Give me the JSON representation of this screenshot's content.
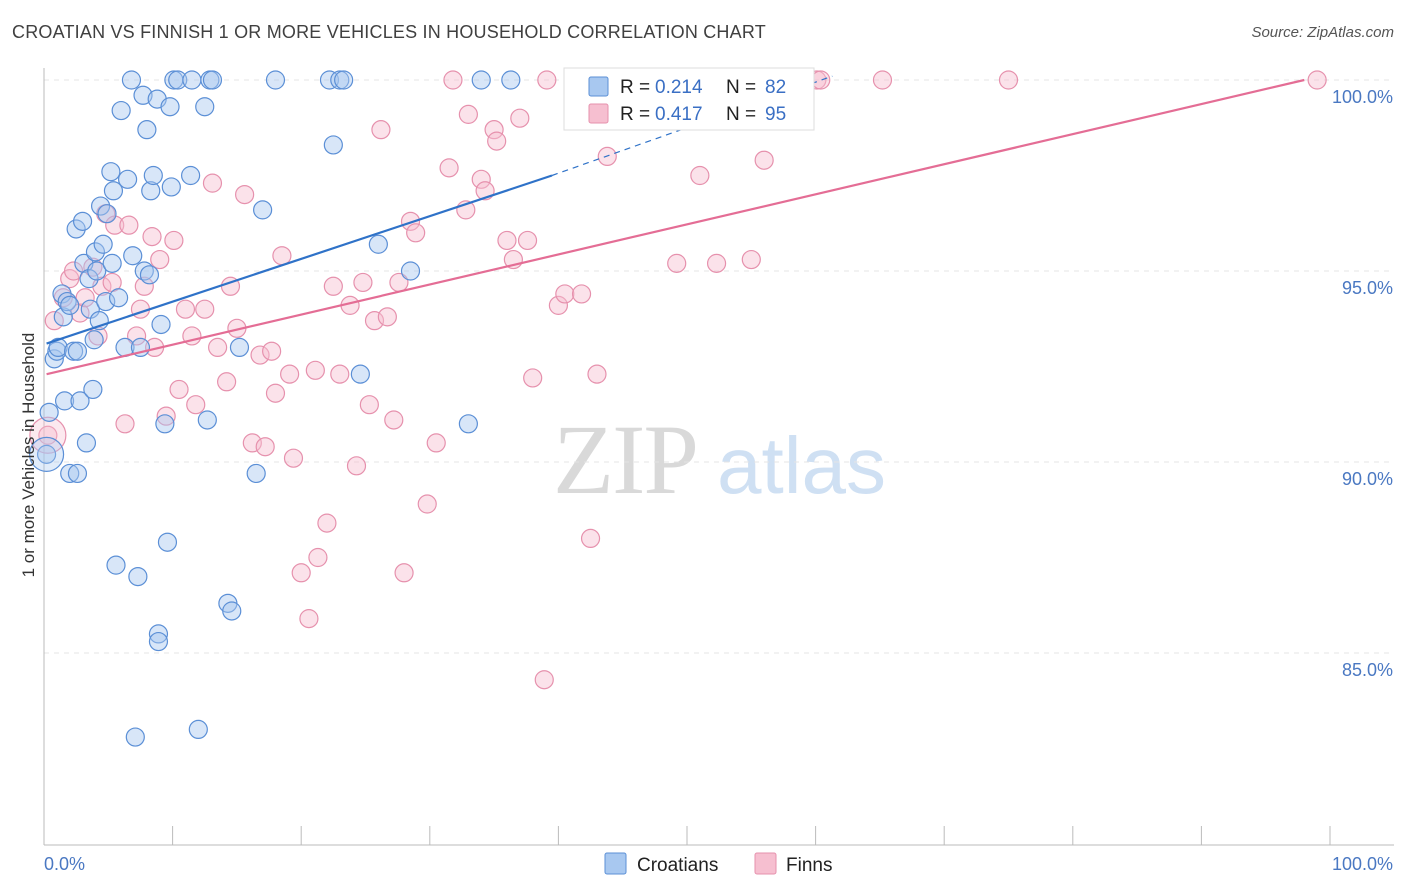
{
  "title": "CROATIAN VS FINNISH 1 OR MORE VEHICLES IN HOUSEHOLD CORRELATION CHART",
  "source": "Source: ZipAtlas.com",
  "watermark": {
    "zip": "ZIP",
    "atlas": "atlas"
  },
  "legend_top": [
    {
      "r_label": "R =",
      "r_value": "0.214",
      "n_label": "N =",
      "n_value": "82"
    },
    {
      "r_label": "R =",
      "r_value": "0.417",
      "n_label": "N =",
      "n_value": "95"
    }
  ],
  "legend_bottom": [
    "Croatians",
    "Finns"
  ],
  "colors": {
    "croatian_fill": "#a8c8f0",
    "croatian_stroke": "#5b8fd6",
    "croatian_line": "#2f72c8",
    "finn_fill": "#f6bfd0",
    "finn_stroke": "#e691ad",
    "finn_line": "#e46d95",
    "tick_text": "#4a78c2",
    "grid": "#e4e4e4"
  },
  "chart_data": {
    "type": "scatter",
    "title": "CROATIAN VS FINNISH 1 OR MORE VEHICLES IN HOUSEHOLD CORRELATION CHART",
    "xlabel": "",
    "ylabel": "1 or more Vehicles in Household",
    "xlim": [
      0,
      100
    ],
    "ylim": [
      80,
      101
    ],
    "x_tick_labels": [
      "0.0%",
      "100.0%"
    ],
    "y_ticks": [
      85,
      90,
      95,
      100
    ],
    "y_tick_labels": [
      "85.0%",
      "90.0%",
      "95.0%",
      "100.0%"
    ],
    "series": [
      {
        "name": "Croatians",
        "R": 0.214,
        "N": 82,
        "trend": {
          "x0": 0.2,
          "y0": 93.1,
          "x1": 39.5,
          "y1": 97.5,
          "dash_to_x": 61.3,
          "dash_to_y": 100.1
        },
        "points": [
          [
            0.2,
            90.2
          ],
          [
            0.4,
            91.3
          ],
          [
            0.8,
            92.7
          ],
          [
            1.0,
            92.9
          ],
          [
            1.1,
            93.0
          ],
          [
            1.4,
            94.4
          ],
          [
            1.5,
            93.8
          ],
          [
            1.6,
            91.6
          ],
          [
            1.8,
            94.2
          ],
          [
            2.0,
            94.1
          ],
          [
            2.0,
            89.7
          ],
          [
            2.3,
            92.9
          ],
          [
            2.5,
            96.1
          ],
          [
            2.6,
            89.7
          ],
          [
            2.6,
            92.9
          ],
          [
            2.8,
            91.6
          ],
          [
            3.0,
            96.3
          ],
          [
            3.1,
            95.2
          ],
          [
            3.3,
            90.5
          ],
          [
            3.5,
            94.8
          ],
          [
            3.6,
            94.0
          ],
          [
            3.8,
            91.9
          ],
          [
            3.9,
            93.2
          ],
          [
            4.0,
            95.5
          ],
          [
            4.1,
            95.0
          ],
          [
            4.3,
            93.7
          ],
          [
            4.4,
            96.7
          ],
          [
            4.6,
            95.7
          ],
          [
            4.8,
            94.2
          ],
          [
            4.9,
            96.5
          ],
          [
            5.2,
            97.6
          ],
          [
            5.3,
            95.2
          ],
          [
            5.4,
            97.1
          ],
          [
            5.6,
            87.3
          ],
          [
            5.8,
            94.3
          ],
          [
            6.0,
            99.2
          ],
          [
            6.3,
            93.0
          ],
          [
            6.5,
            97.4
          ],
          [
            6.8,
            100.0
          ],
          [
            6.9,
            95.4
          ],
          [
            7.1,
            82.8
          ],
          [
            7.3,
            87.0
          ],
          [
            7.5,
            93.0
          ],
          [
            7.7,
            99.6
          ],
          [
            7.8,
            95.0
          ],
          [
            8.0,
            98.7
          ],
          [
            8.2,
            94.9
          ],
          [
            8.3,
            97.1
          ],
          [
            8.5,
            97.5
          ],
          [
            8.8,
            99.5
          ],
          [
            8.9,
            85.5
          ],
          [
            8.9,
            85.3
          ],
          [
            9.1,
            93.6
          ],
          [
            9.4,
            91.0
          ],
          [
            9.6,
            87.9
          ],
          [
            9.8,
            99.3
          ],
          [
            9.9,
            97.2
          ],
          [
            10.1,
            100.0
          ],
          [
            10.4,
            100.0
          ],
          [
            11.4,
            97.5
          ],
          [
            11.5,
            100.0
          ],
          [
            12.0,
            83.0
          ],
          [
            12.5,
            99.3
          ],
          [
            12.7,
            91.1
          ],
          [
            12.9,
            100.0
          ],
          [
            13.1,
            100.0
          ],
          [
            14.3,
            86.3
          ],
          [
            14.6,
            86.1
          ],
          [
            15.2,
            93.0
          ],
          [
            16.5,
            89.7
          ],
          [
            17.0,
            96.6
          ],
          [
            18.0,
            100.0
          ],
          [
            22.2,
            100.0
          ],
          [
            22.5,
            98.3
          ],
          [
            23.0,
            100.0
          ],
          [
            23.3,
            100.0
          ],
          [
            24.6,
            92.3
          ],
          [
            26.0,
            95.7
          ],
          [
            28.5,
            95.0
          ],
          [
            33.0,
            91.0
          ],
          [
            34.0,
            100.0
          ],
          [
            36.3,
            100.0
          ]
        ]
      },
      {
        "name": "Finns",
        "R": 0.417,
        "N": 95,
        "trend": {
          "x0": 0.2,
          "y0": 92.3,
          "x1": 98.0,
          "y1": 100.0
        },
        "points": [
          [
            0.3,
            90.7
          ],
          [
            0.8,
            93.7
          ],
          [
            1.5,
            94.3
          ],
          [
            2.0,
            94.8
          ],
          [
            2.3,
            95.0
          ],
          [
            2.8,
            93.9
          ],
          [
            3.2,
            94.3
          ],
          [
            3.8,
            95.1
          ],
          [
            4.2,
            93.3
          ],
          [
            4.5,
            94.6
          ],
          [
            4.8,
            96.5
          ],
          [
            5.3,
            94.7
          ],
          [
            5.5,
            96.2
          ],
          [
            6.3,
            91.0
          ],
          [
            6.6,
            96.2
          ],
          [
            7.2,
            93.3
          ],
          [
            7.5,
            94.0
          ],
          [
            7.8,
            94.6
          ],
          [
            8.4,
            95.9
          ],
          [
            8.6,
            93.0
          ],
          [
            9.0,
            95.3
          ],
          [
            9.5,
            91.2
          ],
          [
            10.1,
            95.8
          ],
          [
            10.5,
            91.9
          ],
          [
            11.0,
            94.0
          ],
          [
            11.5,
            93.3
          ],
          [
            11.8,
            91.5
          ],
          [
            12.5,
            94.0
          ],
          [
            13.1,
            97.3
          ],
          [
            13.5,
            93.0
          ],
          [
            14.2,
            92.1
          ],
          [
            14.5,
            94.6
          ],
          [
            15.0,
            93.5
          ],
          [
            15.6,
            97.0
          ],
          [
            16.2,
            90.5
          ],
          [
            16.8,
            92.8
          ],
          [
            17.2,
            90.4
          ],
          [
            17.7,
            92.9
          ],
          [
            18.0,
            91.8
          ],
          [
            18.5,
            95.4
          ],
          [
            19.1,
            92.3
          ],
          [
            19.4,
            90.1
          ],
          [
            20.0,
            87.1
          ],
          [
            20.6,
            85.9
          ],
          [
            21.1,
            92.4
          ],
          [
            21.3,
            87.5
          ],
          [
            22.0,
            88.4
          ],
          [
            22.5,
            94.6
          ],
          [
            23.0,
            92.3
          ],
          [
            23.8,
            94.1
          ],
          [
            24.3,
            89.9
          ],
          [
            24.8,
            94.7
          ],
          [
            25.3,
            91.5
          ],
          [
            25.7,
            93.7
          ],
          [
            26.2,
            98.7
          ],
          [
            26.7,
            93.8
          ],
          [
            27.2,
            91.1
          ],
          [
            27.6,
            94.7
          ],
          [
            28.0,
            87.1
          ],
          [
            28.5,
            96.3
          ],
          [
            28.9,
            96.0
          ],
          [
            29.8,
            88.9
          ],
          [
            30.5,
            90.5
          ],
          [
            31.5,
            97.7
          ],
          [
            31.8,
            100.0
          ],
          [
            32.8,
            96.6
          ],
          [
            33.0,
            99.1
          ],
          [
            34.0,
            97.4
          ],
          [
            34.3,
            97.1
          ],
          [
            35.0,
            98.7
          ],
          [
            35.2,
            98.4
          ],
          [
            36.0,
            95.8
          ],
          [
            36.5,
            95.3
          ],
          [
            37.0,
            99.0
          ],
          [
            37.6,
            95.8
          ],
          [
            38.0,
            92.2
          ],
          [
            38.9,
            84.3
          ],
          [
            39.1,
            100.0
          ],
          [
            40.0,
            94.1
          ],
          [
            40.5,
            94.4
          ],
          [
            41.8,
            94.4
          ],
          [
            42.5,
            88.0
          ],
          [
            43.0,
            92.3
          ],
          [
            43.8,
            98.0
          ],
          [
            46.0,
            100.0
          ],
          [
            49.2,
            95.2
          ],
          [
            51.0,
            97.5
          ],
          [
            52.3,
            95.2
          ],
          [
            55.0,
            95.3
          ],
          [
            56.0,
            97.9
          ],
          [
            60.1,
            100.0
          ],
          [
            60.4,
            100.0
          ],
          [
            65.2,
            100.0
          ],
          [
            75.0,
            100.0
          ],
          [
            99.0,
            100.0
          ]
        ]
      }
    ]
  }
}
